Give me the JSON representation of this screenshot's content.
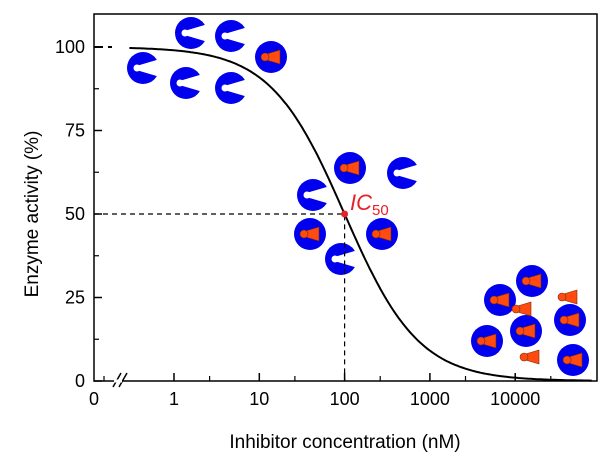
{
  "chart_data": {
    "type": "line",
    "title": "",
    "xlabel": "Inhibitor concentration (nM)",
    "ylabel": "Enzyme activity (%)",
    "x_scale": "log (with axis break after 0)",
    "x_tick_labels": [
      "0",
      "1",
      "10",
      "100",
      "1000",
      "10000"
    ],
    "x_tick_values": [
      0,
      1,
      10,
      100,
      1000,
      10000
    ],
    "y_tick_labels": [
      "0",
      "25",
      "50",
      "75",
      "100"
    ],
    "y_tick_values": [
      0,
      25,
      50,
      75,
      100
    ],
    "ylim": [
      0,
      110
    ],
    "grid": false,
    "series": [
      {
        "model": "100 / (1 + x / IC50)",
        "ic50": 100,
        "x_range": [
          0.3,
          80000
        ],
        "color": "#000000"
      }
    ],
    "annotation": {
      "label": "IC",
      "subscript": "50",
      "x": 100,
      "y": 50,
      "color": "#e8202a"
    }
  },
  "colors": {
    "enzyme": "#0000ee",
    "inhibitor": "#ff4a10",
    "ic50": "#e8202a"
  }
}
